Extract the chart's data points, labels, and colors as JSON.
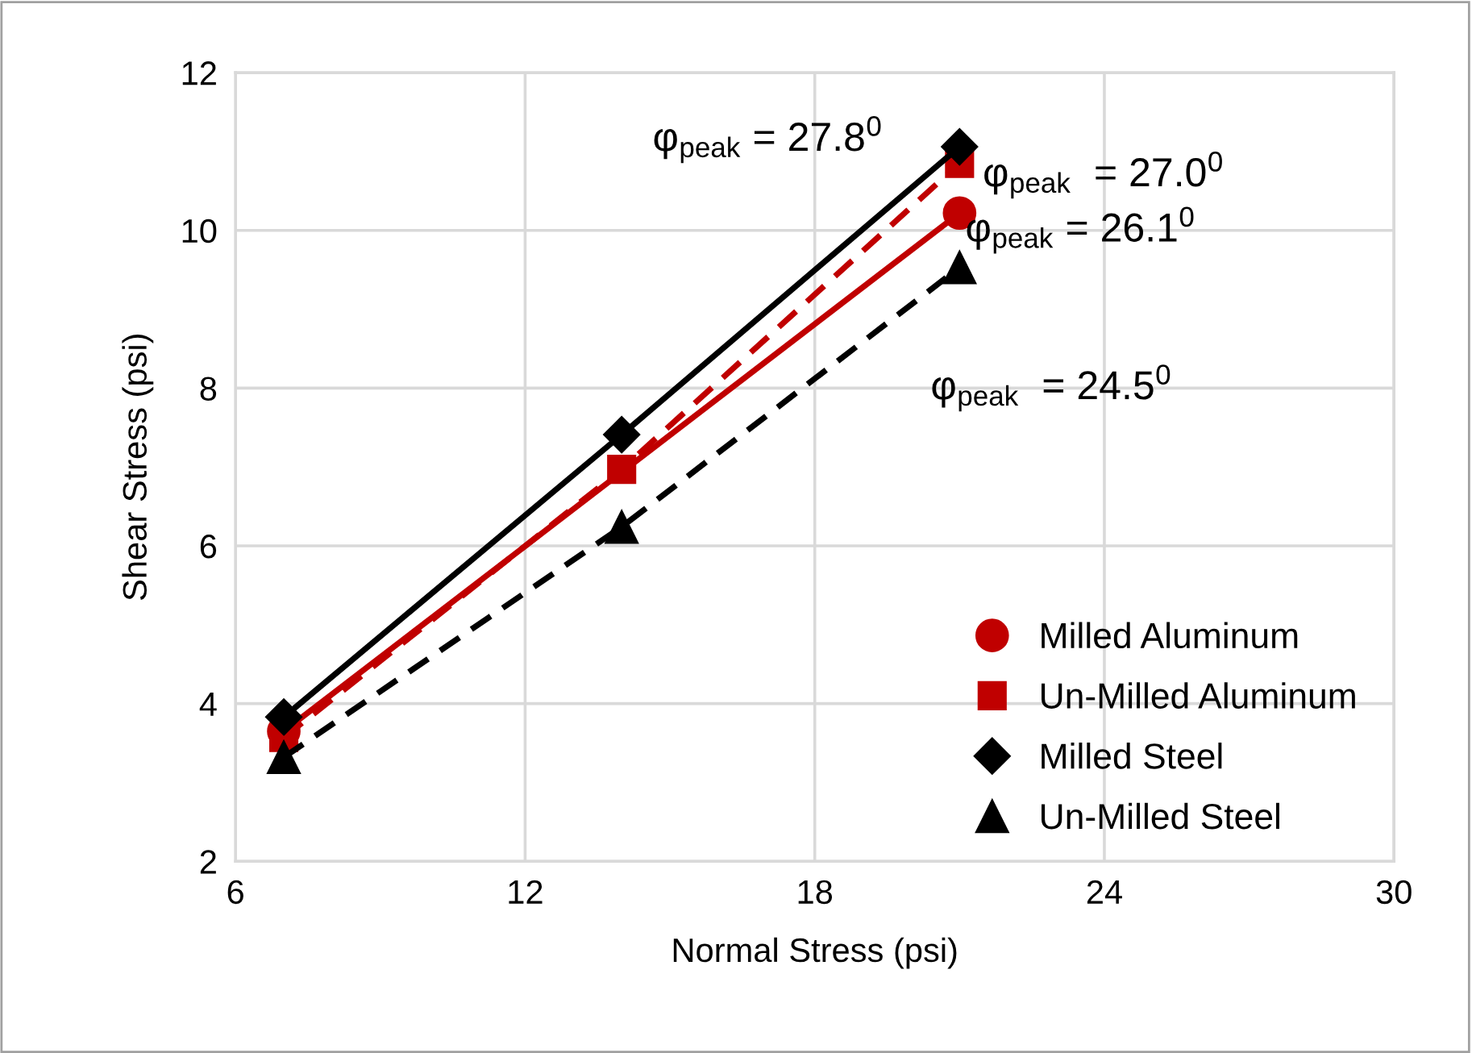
{
  "chart_data": {
    "type": "line",
    "xlabel": "Normal Stress (psi)",
    "ylabel": "Shear Stress (psi)",
    "x": [
      7,
      14,
      21
    ],
    "series": [
      {
        "name": "Milled Aluminum",
        "color": "#c00000",
        "values": [
          3.65,
          null,
          10.22
        ],
        "marker": "circle",
        "line_style": "solid"
      },
      {
        "name": "Un-Milled Aluminum",
        "color": "#c00000",
        "values": [
          3.57,
          6.97,
          10.85
        ],
        "marker": "square",
        "line_style": "dashed"
      },
      {
        "name": "Milled Steel",
        "color": "#000000",
        "values": [
          3.83,
          7.41,
          11.06
        ],
        "marker": "diamond",
        "line_style": "solid"
      },
      {
        "name": "Un-Milled Steel",
        "color": "#000000",
        "values": [
          3.32,
          6.24,
          9.53
        ],
        "marker": "triangle",
        "line_style": "dashed"
      }
    ],
    "xlim": [
      6,
      30
    ],
    "xticks": [
      6,
      12,
      18,
      24,
      30
    ],
    "ylim": [
      2,
      12
    ],
    "yticks": [
      2,
      4,
      6,
      8,
      10,
      12
    ],
    "grid": true,
    "legend": "bottom right",
    "annotations": [
      "φ$_{peak}$ = 27.8$^{0}$",
      "φ$_{peak}$  = 27.0$^{0}$",
      "φ$_{peak}$ = 26.1$^{0}$",
      "φ$_{peak}$  = 24.5$^{0}$"
    ]
  }
}
